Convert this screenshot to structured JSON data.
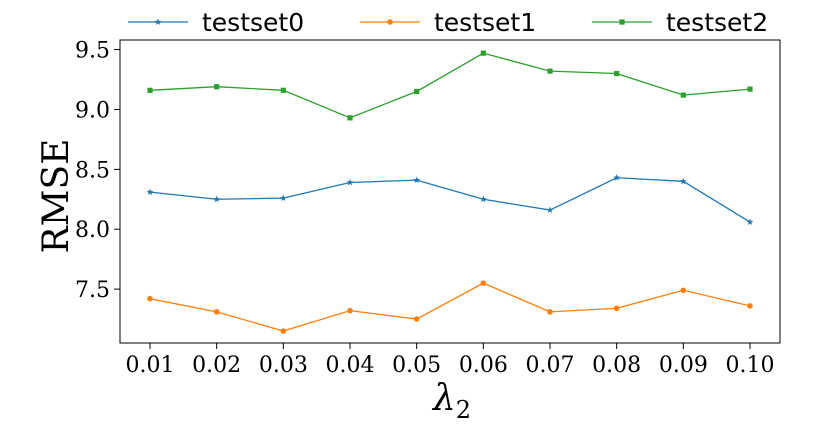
{
  "chart_data": {
    "type": "line",
    "title": "",
    "xlabel": "λ",
    "xlabel_subscript": "2",
    "ylabel": "RMSE",
    "x": [
      0.01,
      0.02,
      0.03,
      0.04,
      0.05,
      0.06,
      0.07,
      0.08,
      0.09,
      0.1
    ],
    "x_tick_labels": [
      "0.01",
      "0.02",
      "0.03",
      "0.04",
      "0.05",
      "0.06",
      "0.07",
      "0.08",
      "0.09",
      "0.10"
    ],
    "ylim": [
      7.05,
      9.58
    ],
    "y_ticks": [
      7.5,
      8.0,
      8.5,
      9.0,
      9.5
    ],
    "y_tick_labels": [
      "7.5",
      "8.0",
      "8.5",
      "9.0",
      "9.5"
    ],
    "grid": false,
    "legend_position": "top",
    "series": [
      {
        "name": "testset0",
        "color": "#1f77b4",
        "marker": "star",
        "values": [
          8.31,
          8.25,
          8.26,
          8.39,
          8.41,
          8.25,
          8.16,
          8.43,
          8.4,
          8.06
        ]
      },
      {
        "name": "testset1",
        "color": "#ff7f0e",
        "marker": "circle",
        "values": [
          7.42,
          7.31,
          7.15,
          7.32,
          7.25,
          7.55,
          7.31,
          7.34,
          7.49,
          7.36
        ]
      },
      {
        "name": "testset2",
        "color": "#2ca02c",
        "marker": "square",
        "values": [
          9.16,
          9.19,
          9.16,
          8.93,
          9.15,
          9.47,
          9.32,
          9.3,
          9.12,
          9.17
        ]
      }
    ]
  }
}
